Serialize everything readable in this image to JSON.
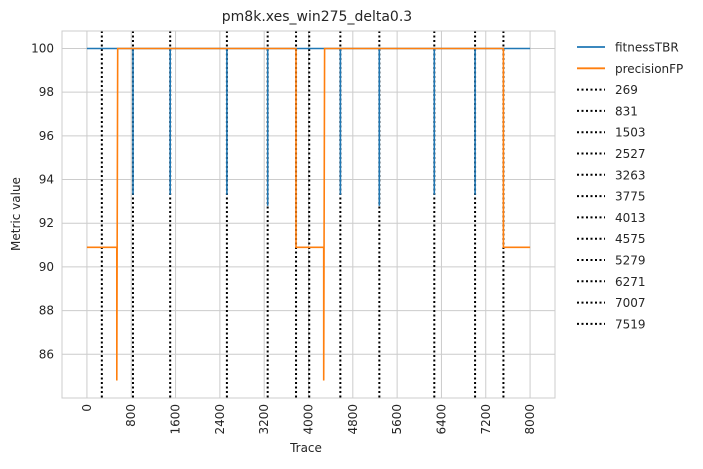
{
  "chart_data": {
    "type": "line",
    "title": "pm8k.xes_win275_delta0.3",
    "xlabel": "Trace",
    "ylabel": "Metric value",
    "xlim": [
      -450,
      8450
    ],
    "ylim": [
      84.0,
      100.8
    ],
    "xticks": [
      "0",
      "800",
      "1600",
      "2400",
      "3200",
      "4000",
      "4800",
      "5600",
      "6400",
      "7200",
      "8000"
    ],
    "yticks": [
      "86",
      "88",
      "90",
      "92",
      "94",
      "96",
      "98",
      "100"
    ],
    "grid": true,
    "legend_position": "outside-right",
    "series": [
      {
        "name": "fitnessTBR",
        "color": "#1f77b4",
        "x": [
          0,
          831,
          831,
          831,
          1503,
          1503,
          1503,
          2527,
          2527,
          2527,
          3263,
          3263,
          3263,
          4575,
          4575,
          4575,
          5279,
          5279,
          5279,
          6271,
          6271,
          6271,
          7007,
          7007,
          7007,
          8000
        ],
        "y": [
          100,
          100,
          93.3,
          100,
          100,
          93.3,
          100,
          100,
          93.3,
          100,
          100,
          92.8,
          100,
          100,
          93.3,
          100,
          100,
          92.8,
          100,
          100,
          93.3,
          100,
          100,
          93.3,
          100,
          100
        ]
      },
      {
        "name": "precisionFP",
        "color": "#ff7f0e",
        "x": [
          0,
          540,
          540,
          555,
          3775,
          3775,
          4275,
          4275,
          4290,
          7519,
          7519,
          8000
        ],
        "y": [
          90.9,
          90.9,
          84.8,
          100,
          100,
          90.9,
          90.9,
          84.8,
          100,
          100,
          90.9,
          90.9
        ]
      }
    ],
    "vlines": {
      "style": "dotted",
      "color": "#000000",
      "x": [
        269,
        831,
        1503,
        2527,
        3263,
        3775,
        4013,
        4575,
        5279,
        6271,
        7007,
        7519
      ],
      "labels": [
        "269",
        "831",
        "1503",
        "2527",
        "3263",
        "3775",
        "4013",
        "4575",
        "5279",
        "6271",
        "7007",
        "7519"
      ]
    }
  }
}
